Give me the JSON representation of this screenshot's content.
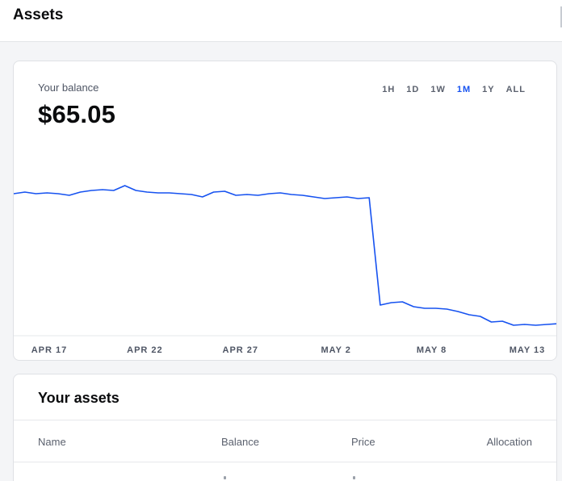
{
  "header": {
    "title": "Assets"
  },
  "balance": {
    "label": "Your balance",
    "value": "$65.05"
  },
  "ranges": [
    {
      "label": "1H",
      "active": false
    },
    {
      "label": "1D",
      "active": false
    },
    {
      "label": "1W",
      "active": false
    },
    {
      "label": "1M",
      "active": true
    },
    {
      "label": "1Y",
      "active": false
    },
    {
      "label": "ALL",
      "active": false
    }
  ],
  "chart_data": {
    "type": "line",
    "title": "",
    "xlabel": "",
    "ylabel": "",
    "x_ticks": [
      "APR 17",
      "APR 22",
      "APR 27",
      "MAY 2",
      "MAY 8",
      "MAY 13"
    ],
    "grid": false,
    "legend": "none",
    "color": "#1652f0",
    "series": [
      {
        "values": [
          0.88,
          0.89,
          0.88,
          0.885,
          0.88,
          0.87,
          0.89,
          0.9,
          0.905,
          0.9,
          0.93,
          0.9,
          0.89,
          0.885,
          0.885,
          0.88,
          0.875,
          0.86,
          0.89,
          0.895,
          0.87,
          0.875,
          0.87,
          0.88,
          0.885,
          0.875,
          0.87,
          0.86,
          0.85,
          0.855,
          0.86,
          0.85,
          0.855,
          0.19,
          0.205,
          0.21,
          0.18,
          0.17,
          0.17,
          0.165,
          0.15,
          0.13,
          0.12,
          0.085,
          0.09,
          0.065,
          0.07,
          0.065,
          0.07,
          0.075
        ]
      }
    ]
  },
  "assets": {
    "title": "Your assets",
    "columns": {
      "name": "Name",
      "balance": "Balance",
      "price": "Price",
      "allocation": "Allocation"
    }
  }
}
